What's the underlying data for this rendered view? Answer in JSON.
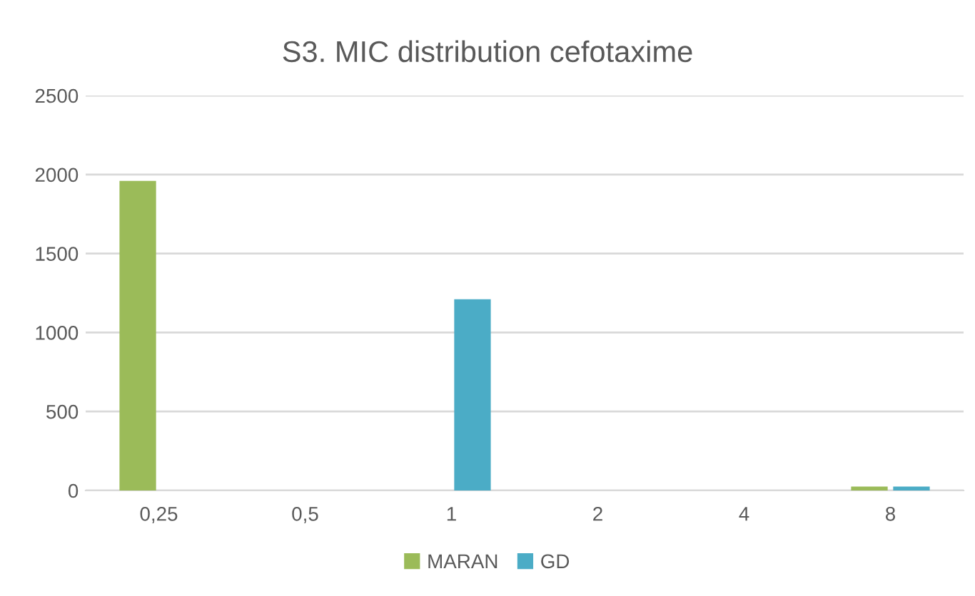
{
  "chart_data": {
    "type": "bar",
    "title": "S3. MIC distribution cefotaxime",
    "categories": [
      "0,25",
      "0,5",
      "1",
      "2",
      "4",
      "8"
    ],
    "series": [
      {
        "name": "MARAN",
        "color": "#9bbb59",
        "values": [
          1960,
          0,
          0,
          0,
          0,
          25
        ]
      },
      {
        "name": "GD",
        "color": "#4bacc6",
        "values": [
          0,
          0,
          1210,
          0,
          0,
          25
        ]
      }
    ],
    "ylim": [
      0,
      2500
    ],
    "yticks": [
      0,
      500,
      1000,
      1500,
      2000,
      2500
    ],
    "grid": "y",
    "legend": "bottom"
  }
}
